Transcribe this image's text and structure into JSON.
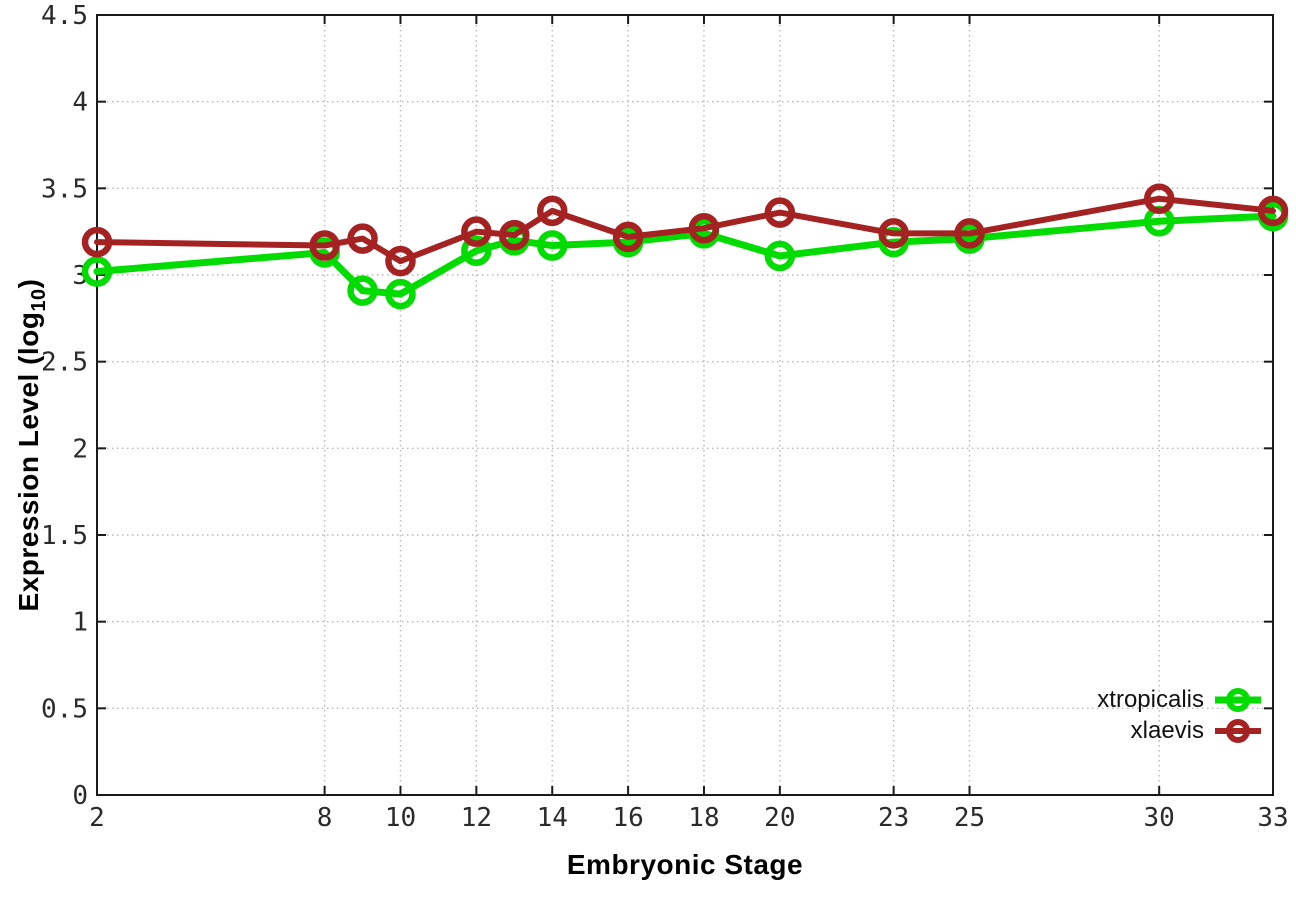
{
  "axes": {
    "xlabel": "Embryonic Stage",
    "ylabel_prefix": "Expression Level (log",
    "ylabel_sub": "10",
    "ylabel_suffix": ")"
  },
  "chart_data": {
    "type": "line",
    "title": "",
    "xlabel": "Embryonic Stage",
    "ylabel": "Expression Level (log10)",
    "x": [
      2,
      8,
      9,
      10,
      12,
      13,
      14,
      16,
      18,
      20,
      23,
      25,
      30,
      33
    ],
    "series": [
      {
        "name": "xtropicalis",
        "color": "#00db00",
        "values": [
          3.02,
          3.13,
          2.91,
          2.89,
          3.14,
          3.2,
          3.17,
          3.19,
          3.24,
          3.11,
          3.19,
          3.21,
          3.31,
          3.34
        ]
      },
      {
        "name": "xlaevis",
        "color": "#a52222",
        "values": [
          3.19,
          3.17,
          3.21,
          3.08,
          3.25,
          3.23,
          3.37,
          3.22,
          3.27,
          3.36,
          3.24,
          3.24,
          3.44,
          3.37
        ]
      }
    ],
    "xlim": [
      2,
      33
    ],
    "ylim": [
      0,
      4.5
    ],
    "x_ticks": [
      2,
      8,
      10,
      12,
      14,
      16,
      18,
      20,
      23,
      25,
      30,
      33
    ],
    "x_tick_labels": [
      "2",
      "8",
      "10",
      "12",
      "14",
      "16",
      "18",
      "20",
      "23",
      "25",
      "30",
      "33"
    ],
    "y_ticks": [
      0,
      0.5,
      1,
      1.5,
      2,
      2.5,
      3,
      3.5,
      4,
      4.5
    ],
    "y_tick_labels": [
      "0",
      "0.5",
      "1",
      "1.5",
      "2",
      "2.5",
      "3",
      "3.5",
      "4",
      "4.5"
    ],
    "grid": true,
    "grid_color": "#b8b8b8",
    "border_color": "#1a1a1a",
    "marker": "open-circle",
    "legend_position": "bottom-right"
  },
  "legend": {
    "items": [
      {
        "label": "xtropicalis"
      },
      {
        "label": "xlaevis"
      }
    ]
  }
}
